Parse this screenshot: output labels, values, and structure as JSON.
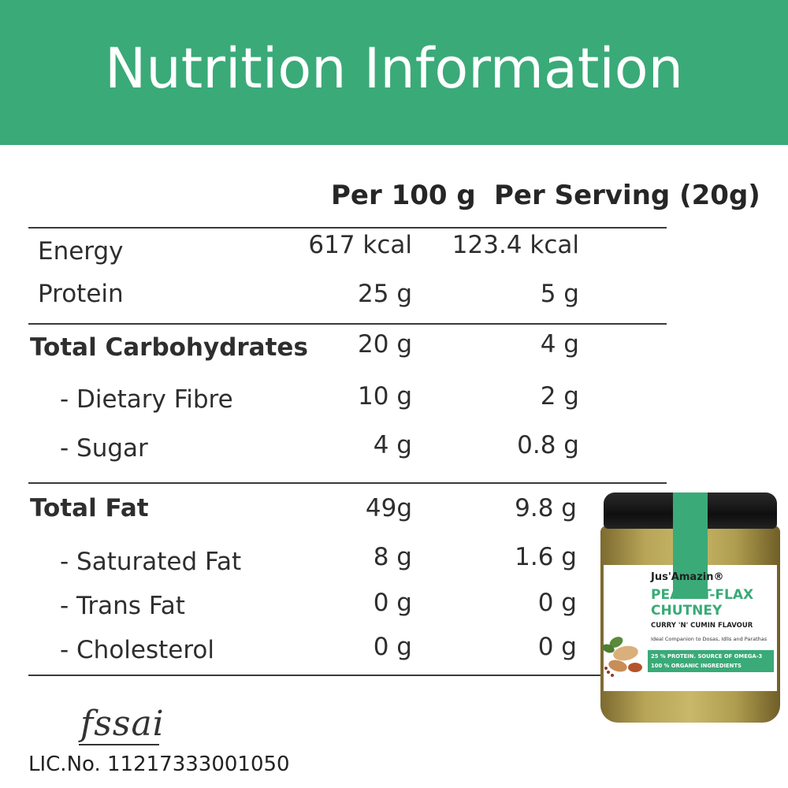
{
  "banner": {
    "title": "Nutrition Information"
  },
  "columns": {
    "per100": "Per 100 g",
    "perServing": "Per Serving (20g)"
  },
  "rows": [
    {
      "label": "Energy",
      "per100": "617 kcal",
      "perServing": "123.4 kcal"
    },
    {
      "label": "Protein",
      "per100": "25 g",
      "perServing": "5 g"
    },
    {
      "label": "Total Carbohydrates",
      "per100": "20 g",
      "perServing": "4 g"
    },
    {
      "label": "- Dietary Fibre",
      "per100": "10 g",
      "perServing": "2 g"
    },
    {
      "label": "- Sugar",
      "per100": "4 g",
      "perServing": "0.8 g"
    },
    {
      "label": "Total Fat",
      "per100": "49g",
      "perServing": "9.8 g"
    },
    {
      "label": "- Saturated Fat",
      "per100": "8 g",
      "perServing": "1.6 g"
    },
    {
      "label": "- Trans Fat",
      "per100": "0 g",
      "perServing": "0 g"
    },
    {
      "label": "- Cholesterol",
      "per100": "0 g",
      "perServing": "0 g"
    }
  ],
  "footer": {
    "fssai_logo": "fssai",
    "license": "LIC.No. 11217333001050"
  },
  "jar": {
    "brand": "Jus'Amazin®",
    "name_line1": "PEANUT-FLAX",
    "name_line2": "CHUTNEY",
    "flavour": "CURRY 'N' CUMIN FLAVOUR",
    "tagline": "Ideal Companion to Dosas, Idlis and Parathas",
    "band_line1": "25 % PROTEIN. SOURCE OF OMEGA-3",
    "band_line2": "100 % ORGANIC INGREDIENTS"
  },
  "colors": {
    "accent": "#3aaa78",
    "text": "#2e2e2e",
    "rule": "#3a3a3a"
  }
}
